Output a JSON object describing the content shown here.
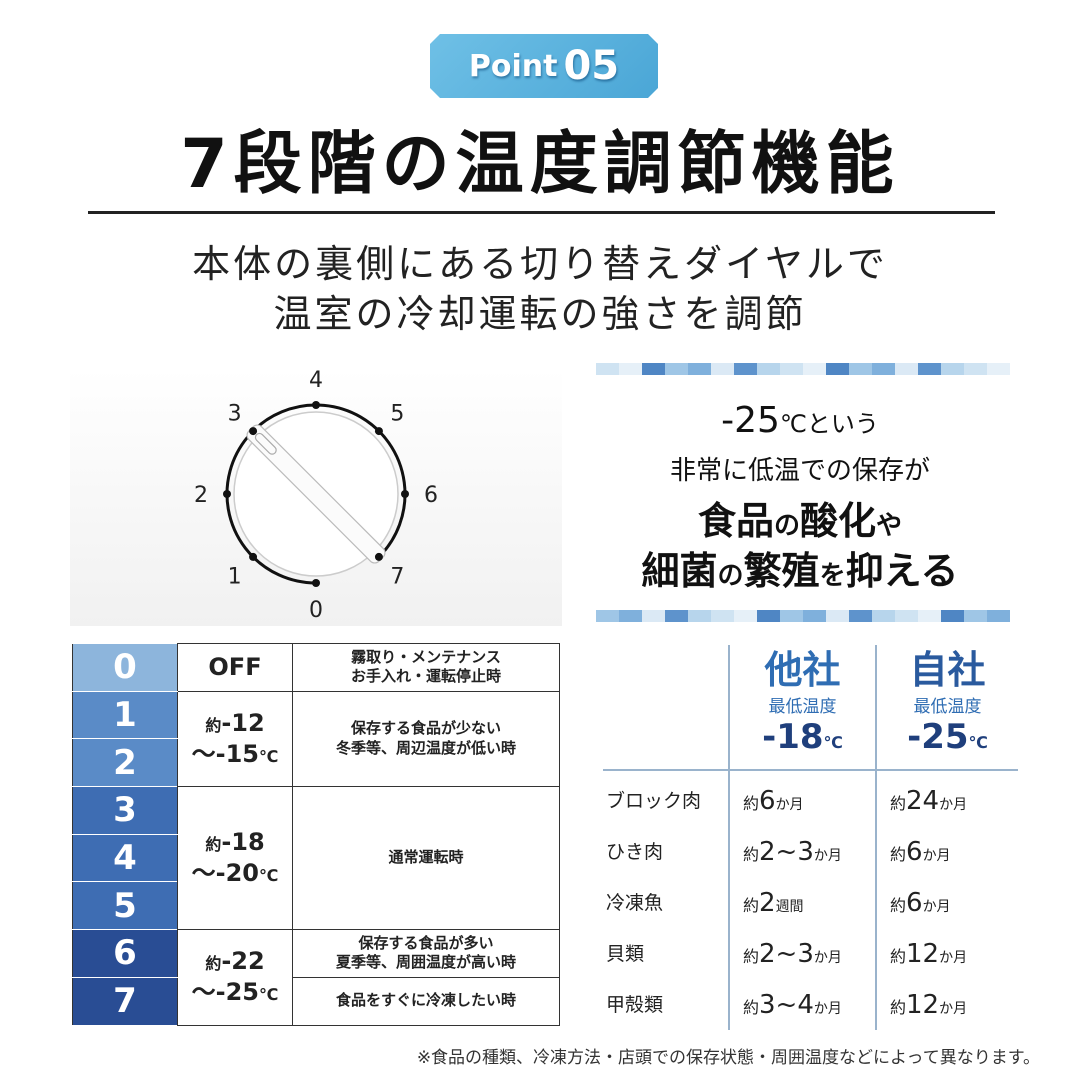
{
  "badge": {
    "label": "Point",
    "number": "05"
  },
  "title": "7段階の温度調節機能",
  "subtitle": [
    "本体の裏側にある切り替えダイヤルで",
    "温室の冷却運転の強さを調節"
  ],
  "dial": {
    "labels": [
      "0",
      "1",
      "2",
      "3",
      "4",
      "5",
      "6",
      "7"
    ]
  },
  "callout": {
    "line1_num": "-25",
    "line1_unit": "℃という",
    "line2": "非常に低温での保存が",
    "line3a": "食品",
    "line3b": "の",
    "line3c": "酸化",
    "line3d": "や",
    "line4a": "細菌",
    "line4b": "の",
    "line4c": "繁殖",
    "line4d": "を",
    "line4e": "抑える"
  },
  "colors": {
    "level0": "#8db5dc",
    "level12": "#5a8bc7",
    "level345": "#3e6db3",
    "level67": "#294d94",
    "other_brand": "#2f6db3",
    "own_brand": "#1f3f7c"
  },
  "modes": {
    "levels": [
      "0",
      "1",
      "2",
      "3",
      "4",
      "5",
      "6",
      "7"
    ],
    "off": "OFF",
    "off_desc": [
      "霧取り・メンテナンス",
      "お手入れ・運転停止時"
    ],
    "t1": {
      "pre": "約",
      "a": "-12",
      "b": "～-15",
      "u": "℃"
    },
    "d1": [
      "保存する食品が少ない",
      "冬季等、周辺温度が低い時"
    ],
    "t2": {
      "pre": "約",
      "a": "-18",
      "b": "～-20",
      "u": "℃"
    },
    "d2": "通常運転時",
    "t3": {
      "pre": "約",
      "a": "-22",
      "b": "～-25",
      "u": "℃"
    },
    "d3": [
      "保存する食品が多い",
      "夏季等、周囲温度が高い時"
    ],
    "d4": "食品をすぐに冷凍したい時"
  },
  "compare": {
    "other": {
      "name": "他社",
      "label": "最低温度",
      "temp": "-18",
      "unit": "℃"
    },
    "own": {
      "name": "自社",
      "label": "最低温度",
      "temp": "-25",
      "unit": "℃"
    },
    "rows": [
      {
        "item": "ブロック肉",
        "other": [
          "約",
          "6",
          "か月"
        ],
        "own": [
          "約",
          "24",
          "か月"
        ]
      },
      {
        "item": "ひき肉",
        "other": [
          "約",
          "2~3",
          "か月"
        ],
        "own": [
          "約",
          "6",
          "か月"
        ]
      },
      {
        "item": "冷凍魚",
        "other": [
          "約",
          "2",
          "週間"
        ],
        "own": [
          "約",
          "6",
          "か月"
        ]
      },
      {
        "item": "貝類",
        "other": [
          "約",
          "2~3",
          "か月"
        ],
        "own": [
          "約",
          "12",
          "か月"
        ]
      },
      {
        "item": "甲殻類",
        "other": [
          "約",
          "3~4",
          "か月"
        ],
        "own": [
          "約",
          "12",
          "か月"
        ]
      }
    ]
  },
  "footnote": "※食品の種類、冷凍方法・店頭での保存状態・周囲温度などによって異なります。"
}
